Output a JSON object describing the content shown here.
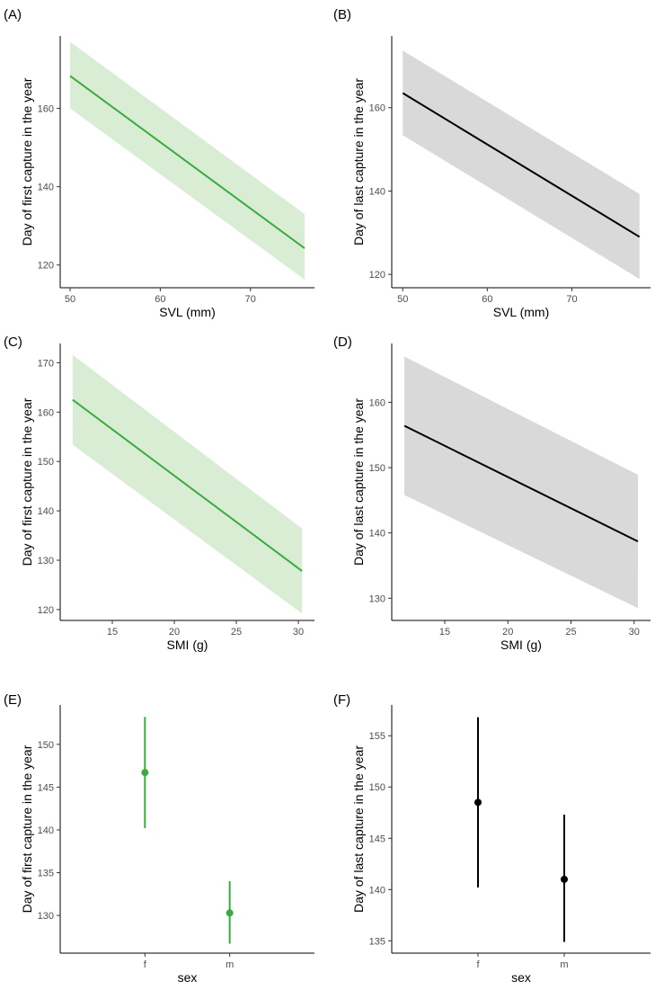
{
  "colors": {
    "green": "#3aac3e",
    "green_band": "#d8edd4",
    "black": "#000000",
    "grey_band": "#d9d9d9"
  },
  "chart_data": [
    {
      "panel": "(A)",
      "type": "line",
      "title": "(A)",
      "xlabel": "SVL (mm)",
      "ylabel": "Day of first capture in the year",
      "xlim": [
        48.9,
        77.1
      ],
      "ylim": [
        114.2,
        178.5
      ],
      "xticks": [
        50,
        60,
        70
      ],
      "yticks": [
        120,
        140,
        160
      ],
      "series": [
        {
          "name": "fit",
          "x": [
            50,
            76
          ],
          "y": [
            168.3,
            124.3
          ],
          "lower": [
            160.0,
            116.3
          ],
          "upper": [
            177.0,
            133.0
          ]
        }
      ],
      "color": "green"
    },
    {
      "panel": "(B)",
      "type": "line",
      "title": "(B)",
      "xlabel": "SVL (mm)",
      "ylabel": "Day of last capture in the year",
      "xlim": [
        48.7,
        79.3
      ],
      "ylim": [
        116.8,
        177.2
      ],
      "xticks": [
        50,
        60,
        70
      ],
      "yticks": [
        120,
        140,
        160
      ],
      "series": [
        {
          "name": "fit",
          "x": [
            50,
            78
          ],
          "y": [
            163.5,
            129.0
          ],
          "lower": [
            153.4,
            118.9
          ],
          "upper": [
            173.7,
            139.3
          ]
        }
      ],
      "color": "black"
    },
    {
      "panel": "(C)",
      "type": "line",
      "title": "(C)",
      "xlabel": "SMI (g)",
      "ylabel": "Day of first capture in the year",
      "xlim": [
        10.8,
        31.3
      ],
      "ylim": [
        117.8,
        173.9
      ],
      "xticks": [
        15,
        20,
        25,
        30
      ],
      "yticks": [
        120,
        130,
        140,
        150,
        160,
        170
      ],
      "series": [
        {
          "name": "fit",
          "x": [
            11.8,
            30.3
          ],
          "y": [
            162.5,
            127.8
          ],
          "lower": [
            153.4,
            119.2
          ],
          "upper": [
            171.6,
            136.4
          ]
        }
      ],
      "color": "green"
    },
    {
      "panel": "(D)",
      "type": "line",
      "title": "(D)",
      "xlabel": "SMI (g)",
      "ylabel": "Day of last capture in the year",
      "xlim": [
        10.8,
        31.3
      ],
      "ylim": [
        126.6,
        169.0
      ],
      "xticks": [
        15,
        20,
        25,
        30
      ],
      "yticks": [
        130,
        140,
        150,
        160
      ],
      "series": [
        {
          "name": "fit",
          "x": [
            11.8,
            30.3
          ],
          "y": [
            156.4,
            138.7
          ],
          "lower": [
            145.8,
            128.5
          ],
          "upper": [
            167.0,
            148.9
          ]
        }
      ],
      "color": "black"
    },
    {
      "panel": "(E)",
      "type": "scatter",
      "title": "(E)",
      "xlabel": "sex",
      "ylabel": "Day of first capture in the year",
      "categories": [
        "f",
        "m"
      ],
      "ylim": [
        125.6,
        154.6
      ],
      "yticks": [
        130,
        135,
        140,
        145,
        150
      ],
      "series": [
        {
          "name": "estimate",
          "values": [
            146.7,
            130.3
          ],
          "lower": [
            140.2,
            126.7
          ],
          "upper": [
            153.2,
            134.0
          ]
        }
      ],
      "color": "green"
    },
    {
      "panel": "(F)",
      "type": "scatter",
      "title": "(F)",
      "xlabel": "sex",
      "ylabel": "Day of last capture in the year",
      "categories": [
        "f",
        "m"
      ],
      "ylim": [
        133.8,
        158.0
      ],
      "yticks": [
        135,
        140,
        145,
        150,
        155
      ],
      "series": [
        {
          "name": "estimate",
          "values": [
            148.5,
            141.0
          ],
          "lower": [
            140.2,
            134.9
          ],
          "upper": [
            156.8,
            147.3
          ]
        }
      ],
      "color": "black"
    }
  ]
}
